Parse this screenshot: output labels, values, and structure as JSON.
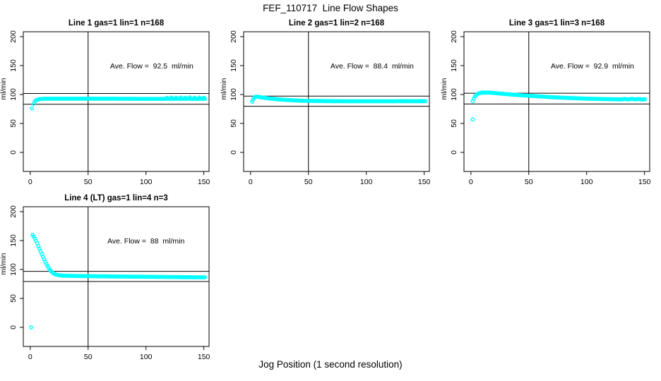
{
  "page": {
    "title": "FEF_110717  Line Flow Shapes",
    "xlabel": "Jog Position (1 second resolution)",
    "background_color": "#ffffff",
    "point_color": "#00ffff",
    "line_color": "#000000"
  },
  "chart_data": [
    {
      "type": "scatter",
      "title": "Line 1 gas=1 lin=1 n=168",
      "annotation": "Ave. Flow =  92.5  ml/min",
      "ave_flow_ml_min": 92.5,
      "n": 168,
      "ylabel": "ml/min",
      "x_ticks": [
        0,
        50,
        100,
        150
      ],
      "y_ticks": [
        0,
        50,
        100,
        150,
        200
      ],
      "xlim": [
        -6,
        154.5
      ],
      "ylim": [
        -33,
        208.5
      ],
      "grid": false,
      "vline_x": 50,
      "hlines": [
        101.8,
        83.2
      ],
      "annotation_pos": [
        105,
        150
      ],
      "outlier_points": [
        [
          1.5,
          76
        ],
        [
          118,
          94.3
        ],
        [
          122,
          94.6
        ],
        [
          126,
          94.2
        ],
        [
          130,
          94.7
        ],
        [
          134,
          94.3
        ],
        [
          138,
          94.8
        ],
        [
          142,
          94.4
        ],
        [
          146,
          94.7
        ],
        [
          150,
          94.3
        ]
      ],
      "band_knots": [
        [
          3,
          84
        ],
        [
          4,
          88.5
        ],
        [
          5,
          90
        ],
        [
          6,
          91
        ],
        [
          8,
          92
        ],
        [
          12,
          92.7
        ],
        [
          60,
          92.8
        ],
        [
          100,
          92.5
        ],
        [
          151,
          92.7
        ]
      ],
      "band_step": 1
    },
    {
      "type": "scatter",
      "title": "Line 2 gas=1 lin=2 n=168",
      "annotation": "Ave. Flow =  88.4  ml/min",
      "ave_flow_ml_min": 88.4,
      "n": 168,
      "ylabel": "ml/min",
      "x_ticks": [
        0,
        50,
        100,
        150
      ],
      "y_ticks": [
        0,
        50,
        100,
        150,
        200
      ],
      "xlim": [
        -6,
        154.5
      ],
      "ylim": [
        -33,
        208.5
      ],
      "grid": false,
      "vline_x": 50,
      "hlines": [
        97.2,
        79.6
      ],
      "annotation_pos": [
        105,
        150
      ],
      "outlier_points": [
        [
          1.3,
          87.5
        ]
      ],
      "band_knots": [
        [
          2,
          91
        ],
        [
          3,
          94.5
        ],
        [
          4,
          96
        ],
        [
          6,
          96.3
        ],
        [
          8,
          95.5
        ],
        [
          10,
          94.8
        ],
        [
          14,
          93.8
        ],
        [
          18,
          92.8
        ],
        [
          22,
          92
        ],
        [
          26,
          91.3
        ],
        [
          30,
          90.7
        ],
        [
          35,
          90.2
        ],
        [
          40,
          89.6
        ],
        [
          45,
          89.2
        ],
        [
          50,
          89
        ],
        [
          60,
          88.7
        ],
        [
          80,
          88.4
        ],
        [
          100,
          88.3
        ],
        [
          120,
          88.4
        ],
        [
          151,
          88.5
        ]
      ],
      "band_step": 1
    },
    {
      "type": "scatter",
      "title": "Line 3 gas=1 lin=3 n=168",
      "annotation": "Ave. Flow =  92.9  ml/min",
      "ave_flow_ml_min": 92.9,
      "n": 168,
      "ylabel": "ml/min",
      "x_ticks": [
        0,
        50,
        100,
        150
      ],
      "y_ticks": [
        0,
        50,
        100,
        150,
        200
      ],
      "xlim": [
        -6,
        154.5
      ],
      "ylim": [
        -33,
        208.5
      ],
      "grid": false,
      "vline_x": 50,
      "hlines": [
        102.2,
        83.6
      ],
      "annotation_pos": [
        105,
        150
      ],
      "outlier_points": [
        [
          1.5,
          57
        ]
      ],
      "band_knots": [
        [
          1.5,
          88.5
        ],
        [
          2,
          91
        ],
        [
          3,
          95
        ],
        [
          4,
          98
        ],
        [
          5,
          100
        ],
        [
          6,
          101.5
        ],
        [
          8,
          102.8
        ],
        [
          10,
          103.2
        ],
        [
          14,
          103.3
        ],
        [
          18,
          103
        ],
        [
          22,
          102.3
        ],
        [
          26,
          101.5
        ],
        [
          30,
          100.8
        ],
        [
          35,
          100
        ],
        [
          40,
          99.2
        ],
        [
          45,
          98.5
        ],
        [
          50,
          98
        ],
        [
          55,
          97.3
        ],
        [
          60,
          96.6
        ],
        [
          65,
          96
        ],
        [
          70,
          95.4
        ],
        [
          75,
          94.9
        ],
        [
          80,
          94.4
        ],
        [
          85,
          94
        ],
        [
          90,
          93.6
        ],
        [
          95,
          93.2
        ],
        [
          100,
          92.9
        ],
        [
          105,
          92.6
        ],
        [
          110,
          92.3
        ],
        [
          115,
          92.1
        ],
        [
          120,
          91.9
        ],
        [
          125,
          91.7
        ],
        [
          130,
          91.5
        ],
        [
          133,
          92.3
        ],
        [
          136,
          91.5
        ],
        [
          139,
          92.4
        ],
        [
          142,
          91.6
        ],
        [
          145,
          92.2
        ],
        [
          148,
          91.4
        ],
        [
          151,
          91.8
        ]
      ],
      "band_step": 1
    },
    {
      "type": "scatter",
      "title": "Line 4 (LT) gas=1 lin=4 n=3",
      "annotation": "Ave. Flow =  88  ml/min",
      "ave_flow_ml_min": 88,
      "n": 3,
      "ylabel": "ml/min",
      "x_ticks": [
        0,
        50,
        100,
        150
      ],
      "y_ticks": [
        0,
        50,
        100,
        150,
        200
      ],
      "xlim": [
        -6,
        154.5
      ],
      "ylim": [
        -33,
        208.5
      ],
      "grid": false,
      "vline_x": 50,
      "hlines": [
        96.8,
        79.2
      ],
      "annotation_pos": [
        100,
        150
      ],
      "outlier_points": [
        [
          0.8,
          0
        ]
      ],
      "band_knots": [
        [
          2,
          160
        ],
        [
          3,
          157
        ],
        [
          4,
          153.5
        ],
        [
          5,
          149.5
        ],
        [
          6,
          145
        ],
        [
          7,
          140.5
        ],
        [
          8,
          136
        ],
        [
          9,
          131
        ],
        [
          10,
          126.5
        ],
        [
          11,
          122
        ],
        [
          12,
          117.5
        ],
        [
          13,
          113.5
        ],
        [
          14,
          109.5
        ],
        [
          15,
          106
        ],
        [
          16,
          102.5
        ],
        [
          17,
          99.5
        ],
        [
          18,
          97
        ],
        [
          19,
          95
        ],
        [
          20,
          93.5
        ],
        [
          21,
          92.3
        ],
        [
          22,
          91.3
        ],
        [
          24,
          90.3
        ],
        [
          26,
          89.8
        ],
        [
          28,
          89.4
        ],
        [
          30,
          89.2
        ],
        [
          35,
          89
        ],
        [
          40,
          88.8
        ],
        [
          50,
          88.5
        ],
        [
          60,
          88.2
        ],
        [
          70,
          88
        ],
        [
          80,
          87.8
        ],
        [
          90,
          87.6
        ],
        [
          100,
          87.4
        ],
        [
          110,
          87.2
        ],
        [
          120,
          87
        ],
        [
          130,
          86.8
        ],
        [
          140,
          86.6
        ],
        [
          151,
          86.5
        ]
      ],
      "band_step": 1
    }
  ]
}
